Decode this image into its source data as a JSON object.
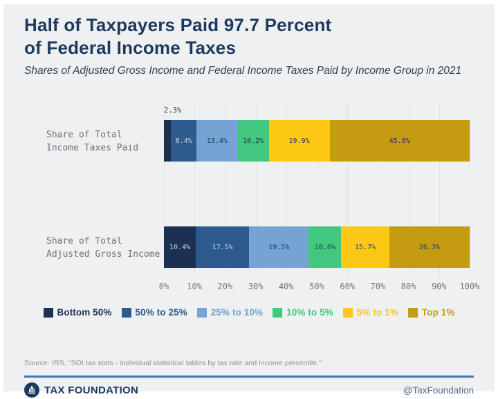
{
  "header": {
    "title_line1": "Half of Taxpayers Paid 97.7 Percent",
    "title_line2": "of Federal Income Taxes",
    "subtitle": "Shares of Adjusted Gross Income and Federal Income Taxes Paid by Income Group in 2021"
  },
  "chart_data": {
    "type": "bar",
    "orientation": "horizontal",
    "stacked": true,
    "grid": true,
    "legend_position": "bottom",
    "xlim": [
      0,
      100
    ],
    "x_ticks": [
      "0%",
      "10%",
      "20%",
      "30%",
      "40%",
      "50%",
      "60%",
      "70%",
      "80%",
      "90%",
      "100%"
    ],
    "categories": [
      [
        "Share of Total",
        "Income Taxes Paid"
      ],
      [
        "Share of Total",
        "Adjusted Gross Income"
      ]
    ],
    "series": [
      {
        "name": "Bottom 50%",
        "color": "#1c3152",
        "label_color": "#cdd6e1",
        "values": [
          2.3,
          10.4
        ]
      },
      {
        "name": "50% to 25%",
        "color": "#2d5b8d",
        "label_color": "#cdd6e1",
        "values": [
          8.4,
          17.5
        ]
      },
      {
        "name": "25% to 10%",
        "color": "#74a3d4",
        "label_color": "#1e3356",
        "values": [
          13.4,
          19.5
        ]
      },
      {
        "name": "10% to 5%",
        "color": "#41c87e",
        "label_color": "#1e3356",
        "values": [
          10.2,
          10.6
        ]
      },
      {
        "name": "5% to 1%",
        "color": "#fcc813",
        "label_color": "#1e3356",
        "values": [
          19.9,
          15.7
        ]
      },
      {
        "name": "Top 1%",
        "color": "#c39c10",
        "label_color": "#1e3356",
        "values": [
          45.8,
          26.3
        ]
      }
    ],
    "value_suffix": "%",
    "outside_label_note": "first segment of top bar labeled above bar"
  },
  "footer": {
    "source": "Source: IRS, \"SOI tax stats - individual statistical tables by tax rate and income percentile.\"",
    "brand": "TAX FOUNDATION",
    "handle": "@TaxFoundation",
    "logo_icon": "capitol-building-icon"
  },
  "colors": {
    "card_background": "#eff0f2",
    "title_navy": "#1c3a5e",
    "gridline": "#e0e1e4",
    "axis_text": "#73777c",
    "divider_blue": "#4579ad"
  }
}
